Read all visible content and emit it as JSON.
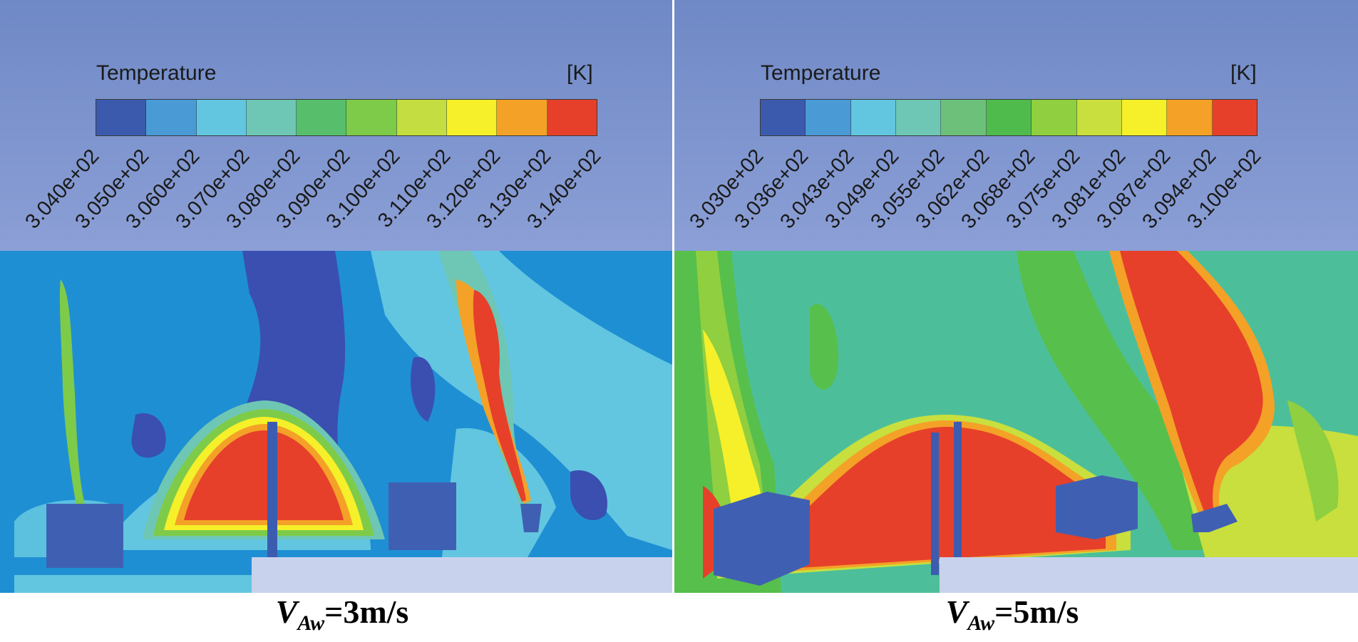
{
  "panels": [
    {
      "legend_title": "Temperature",
      "legend_unit": "[K]",
      "colors": [
        "#3b5aad",
        "#4a9ad6",
        "#62c6e0",
        "#6ec7b4",
        "#57bf6b",
        "#7ecb49",
        "#c4dd40",
        "#f5f02a",
        "#f4a127",
        "#e6402a"
      ],
      "ticks": [
        "3.040e+02",
        "3.050e+02",
        "3.060e+02",
        "3.070e+02",
        "3.080e+02",
        "3.090e+02",
        "3.100e+02",
        "3.110e+02",
        "3.120e+02",
        "3.130e+02",
        "3.140e+02"
      ],
      "caption_var": "V",
      "caption_sub": "Aw",
      "caption_value": "=3m/s"
    },
    {
      "legend_title": "Temperature",
      "legend_unit": "[K]",
      "colors": [
        "#3b5aad",
        "#4a9ad6",
        "#62c6e0",
        "#6ec7b4",
        "#6cc07a",
        "#4fbb4c",
        "#8fcf40",
        "#c8df3e",
        "#f5f02a",
        "#f4a127",
        "#e6402a"
      ],
      "ticks": [
        "3.030e+02",
        "3.036e+02",
        "3.043e+02",
        "3.049e+02",
        "3.055e+02",
        "3.062e+02",
        "3.068e+02",
        "3.075e+02",
        "3.081e+02",
        "3.087e+02",
        "3.094e+02",
        "3.100e+02"
      ],
      "caption_var": "V",
      "caption_sub": "Aw",
      "caption_value": "=5m/s"
    }
  ]
}
